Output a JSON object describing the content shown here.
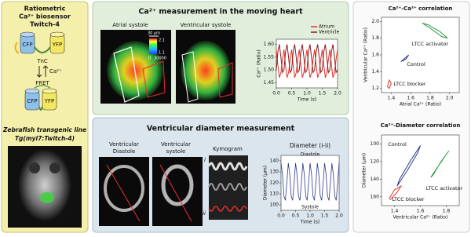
{
  "biosensor": {
    "title": [
      "Ratiometric",
      "Ca²⁺ biosensor",
      "Twitch-4"
    ],
    "open_state": {
      "cfp": "CFP",
      "yfp": "YFP",
      "linker": "TnC"
    },
    "ion": "Ca²⁺",
    "fret": "FRET",
    "closed_state": {
      "cfp": "CFP",
      "yfp": "YFP"
    },
    "line_title": "Zebrafish transgenic line",
    "line_name": "Tg(myl7:Twitch-4)"
  },
  "calcium_section": {
    "title": "Ca²⁺ measurement in the moving heart",
    "images": [
      "Atrial systole",
      "Ventricular systole"
    ],
    "scale_bar": "30 μm",
    "colorbar": {
      "ratio_ticks": [
        2.1,
        1.1
      ],
      "intensity_ticks": [
        0,
        30000
      ]
    },
    "chart": {
      "type": "line",
      "xlabel": "Time (s)",
      "ylabel": "Ca²⁺ (Ratio)",
      "legend": "top-right",
      "xlim": [
        0,
        2
      ],
      "ylim": [
        1.43,
        1.62
      ],
      "xticks": [
        {
          "value": 0,
          "label": "0.0"
        },
        {
          "value": 0.5,
          "label": "0.5"
        },
        {
          "value": 1,
          "label": "1.0"
        },
        {
          "value": 1.5,
          "label": "1.5"
        },
        {
          "value": 2,
          "label": "2.0"
        }
      ],
      "yticks": [
        1.45,
        {
          "value": 1.5,
          "label": "1.50"
        },
        1.55,
        {
          "value": 1.6,
          "label": "1.60"
        }
      ],
      "x": [
        0,
        0.05,
        0.1,
        0.15,
        0.2,
        0.25,
        0.3,
        0.35,
        0.4,
        0.45,
        0.5,
        0.55,
        0.6,
        0.65,
        0.7,
        0.75,
        0.8,
        0.85,
        0.9,
        0.95,
        1,
        1.05,
        1.1,
        1.15,
        1.2,
        1.25,
        1.3,
        1.35,
        1.4,
        1.45,
        1.5,
        1.55,
        1.6,
        1.65,
        1.7,
        1.75,
        1.8,
        1.85,
        1.9,
        1.95,
        2
      ],
      "series": [
        {
          "name": "Atrium",
          "color": "#e8312a",
          "values": [
            1.58,
            1.52,
            1.47,
            1.49,
            1.54,
            1.58,
            1.52,
            1.47,
            1.49,
            1.54,
            1.58,
            1.52,
            1.47,
            1.49,
            1.54,
            1.58,
            1.52,
            1.47,
            1.49,
            1.54,
            1.58,
            1.52,
            1.47,
            1.49,
            1.54,
            1.58,
            1.52,
            1.47,
            1.49,
            1.54,
            1.58,
            1.52,
            1.47,
            1.49,
            1.54,
            1.58,
            1.52,
            1.47,
            1.49,
            1.54,
            1.58
          ]
        },
        {
          "name": "Ventricle",
          "color": "#8b1a1a",
          "values": [
            1.5,
            1.57,
            1.6,
            1.55,
            1.49,
            1.5,
            1.57,
            1.6,
            1.55,
            1.49,
            1.5,
            1.57,
            1.6,
            1.55,
            1.49,
            1.5,
            1.57,
            1.6,
            1.55,
            1.49,
            1.5,
            1.57,
            1.6,
            1.55,
            1.49,
            1.5,
            1.57,
            1.6,
            1.55,
            1.49,
            1.5,
            1.57,
            1.6,
            1.55,
            1.49,
            1.5,
            1.57,
            1.6,
            1.55,
            1.49,
            1.5
          ]
        }
      ]
    }
  },
  "diameter_section": {
    "title": "Ventricular diameter measurement",
    "images": [
      [
        "Ventricular",
        "Diastole"
      ],
      [
        "Ventricular",
        "systole"
      ]
    ],
    "kymogram": "Kymogram",
    "points": [
      "i",
      "ii"
    ],
    "chart": {
      "type": "line",
      "title": "Diameter (i-ii)",
      "annotations": [
        "Diastole",
        "Systole"
      ],
      "xlabel": "Time (s)",
      "ylabel": "Diameter (μm)",
      "xlim": [
        0,
        2
      ],
      "ylim": [
        95,
        145
      ],
      "xticks": [
        {
          "value": 0,
          "label": "0.0"
        },
        {
          "value": 0.5,
          "label": "0.5"
        },
        {
          "value": 1,
          "label": "1.0"
        },
        {
          "value": 1.5,
          "label": "1.5"
        },
        {
          "value": 2,
          "label": "2.0"
        }
      ],
      "yticks": [
        100,
        110,
        120,
        130,
        140
      ],
      "x": [
        0,
        0.05,
        0.1,
        0.15,
        0.2,
        0.25,
        0.3,
        0.35,
        0.4,
        0.45,
        0.5,
        0.55,
        0.6,
        0.65,
        0.7,
        0.75,
        0.8,
        0.85,
        0.9,
        0.95,
        1,
        1.05,
        1.1,
        1.15,
        1.2,
        1.25,
        1.3,
        1.35,
        1.4,
        1.45,
        1.5,
        1.55,
        1.6,
        1.65,
        1.7,
        1.75,
        1.8,
        1.85,
        1.9,
        1.95,
        2
      ],
      "series": [
        {
          "color": "#2b3b8f",
          "values": [
            138,
            128,
            108,
            104,
            120,
            138,
            128,
            108,
            104,
            120,
            138,
            128,
            108,
            104,
            120,
            138,
            128,
            108,
            104,
            120,
            138,
            128,
            108,
            104,
            120,
            138,
            128,
            108,
            104,
            120,
            138,
            128,
            108,
            104,
            120,
            138,
            128,
            108,
            104,
            120,
            138
          ]
        }
      ]
    }
  },
  "correlations": [
    {
      "type": "line",
      "title": "Ca²⁺-Ca²⁺ correlation",
      "xlabel": "Atrial Ca²⁺ (Ratio)",
      "ylabel": "Ventricular Ca²⁺ (Ratio)",
      "xlim": [
        1.3,
        2.1
      ],
      "ylim": [
        1.15,
        2.05
      ],
      "xticks": [
        1.4,
        1.6,
        1.8,
        {
          "value": 2,
          "label": "2.0"
        }
      ],
      "yticks": [
        1.2,
        1.4,
        1.6,
        1.8,
        {
          "value": 2,
          "label": "2.0"
        }
      ],
      "series": [
        {
          "name": "LTCC activator",
          "color": "#2a9a3a",
          "x": [
            1.72,
            1.8,
            1.92,
            1.98,
            1.9,
            1.78,
            1.72
          ],
          "values": [
            1.98,
            1.92,
            1.82,
            1.8,
            1.88,
            1.96,
            1.98
          ]
        },
        {
          "name": "Control",
          "color": "#2b3b8f",
          "x": [
            1.5,
            1.55,
            1.58,
            1.54,
            1.5
          ],
          "values": [
            1.52,
            1.55,
            1.6,
            1.56,
            1.52
          ]
        },
        {
          "name": "LTCC blocker",
          "color": "#e8312a",
          "x": [
            1.36,
            1.38,
            1.4,
            1.38,
            1.36
          ],
          "values": [
            1.22,
            1.3,
            1.26,
            1.2,
            1.22
          ]
        }
      ]
    },
    {
      "type": "line",
      "title": "Ca²⁺-Diameter correlation",
      "xlabel": "Ventricular Ca²⁺ (Ratio)",
      "ylabel": "Diameter (μm)",
      "y_inverted": true,
      "xlim": [
        1.3,
        1.9
      ],
      "ylim": [
        90,
        170
      ],
      "xticks": [
        1.4,
        1.6,
        1.8
      ],
      "yticks": [
        100,
        120,
        140,
        160
      ],
      "series": [
        {
          "name": "Control",
          "color": "#2b3b8f",
          "x": [
            1.42,
            1.5,
            1.58,
            1.6,
            1.52,
            1.44,
            1.42
          ],
          "values": [
            148,
            130,
            110,
            102,
            120,
            140,
            148
          ]
        },
        {
          "name": "LTCC activator",
          "color": "#2a9a3a",
          "x": [
            1.68,
            1.74,
            1.8,
            1.82,
            1.76,
            1.7,
            1.68
          ],
          "values": [
            138,
            125,
            112,
            108,
            120,
            135,
            138
          ]
        },
        {
          "name": "LTCC blocker",
          "color": "#e8312a",
          "x": [
            1.36,
            1.4,
            1.45,
            1.42,
            1.37,
            1.36
          ],
          "values": [
            162,
            152,
            148,
            155,
            163,
            162
          ]
        }
      ]
    }
  ]
}
